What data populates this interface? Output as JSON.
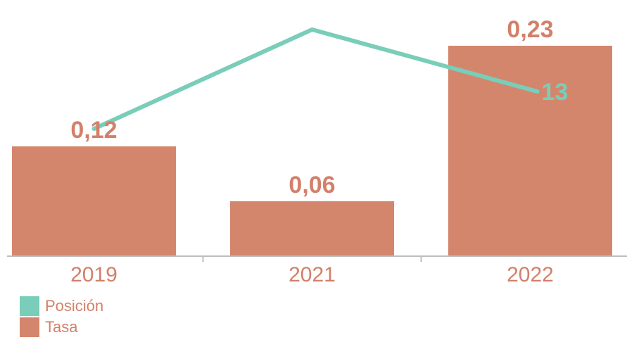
{
  "chart_data": {
    "type": "bar",
    "categories": [
      "2019",
      "2021",
      "2022"
    ],
    "series": [
      {
        "name": "Tasa",
        "type": "bar",
        "values": [
          0.12,
          0.06,
          0.23
        ],
        "labels": [
          "0,12",
          "0,06",
          "0,23"
        ],
        "color": "#d4866d"
      },
      {
        "name": "Posición",
        "type": "line",
        "values": [
          null,
          null,
          13
        ],
        "labels": [
          null,
          null,
          "13"
        ],
        "color": "#79cdb9"
      }
    ]
  },
  "colors": {
    "axis": "#bdbdbd",
    "tick_label": "#d3806a",
    "bar_label": "#d3806a",
    "line_label": "#79cdb9"
  }
}
